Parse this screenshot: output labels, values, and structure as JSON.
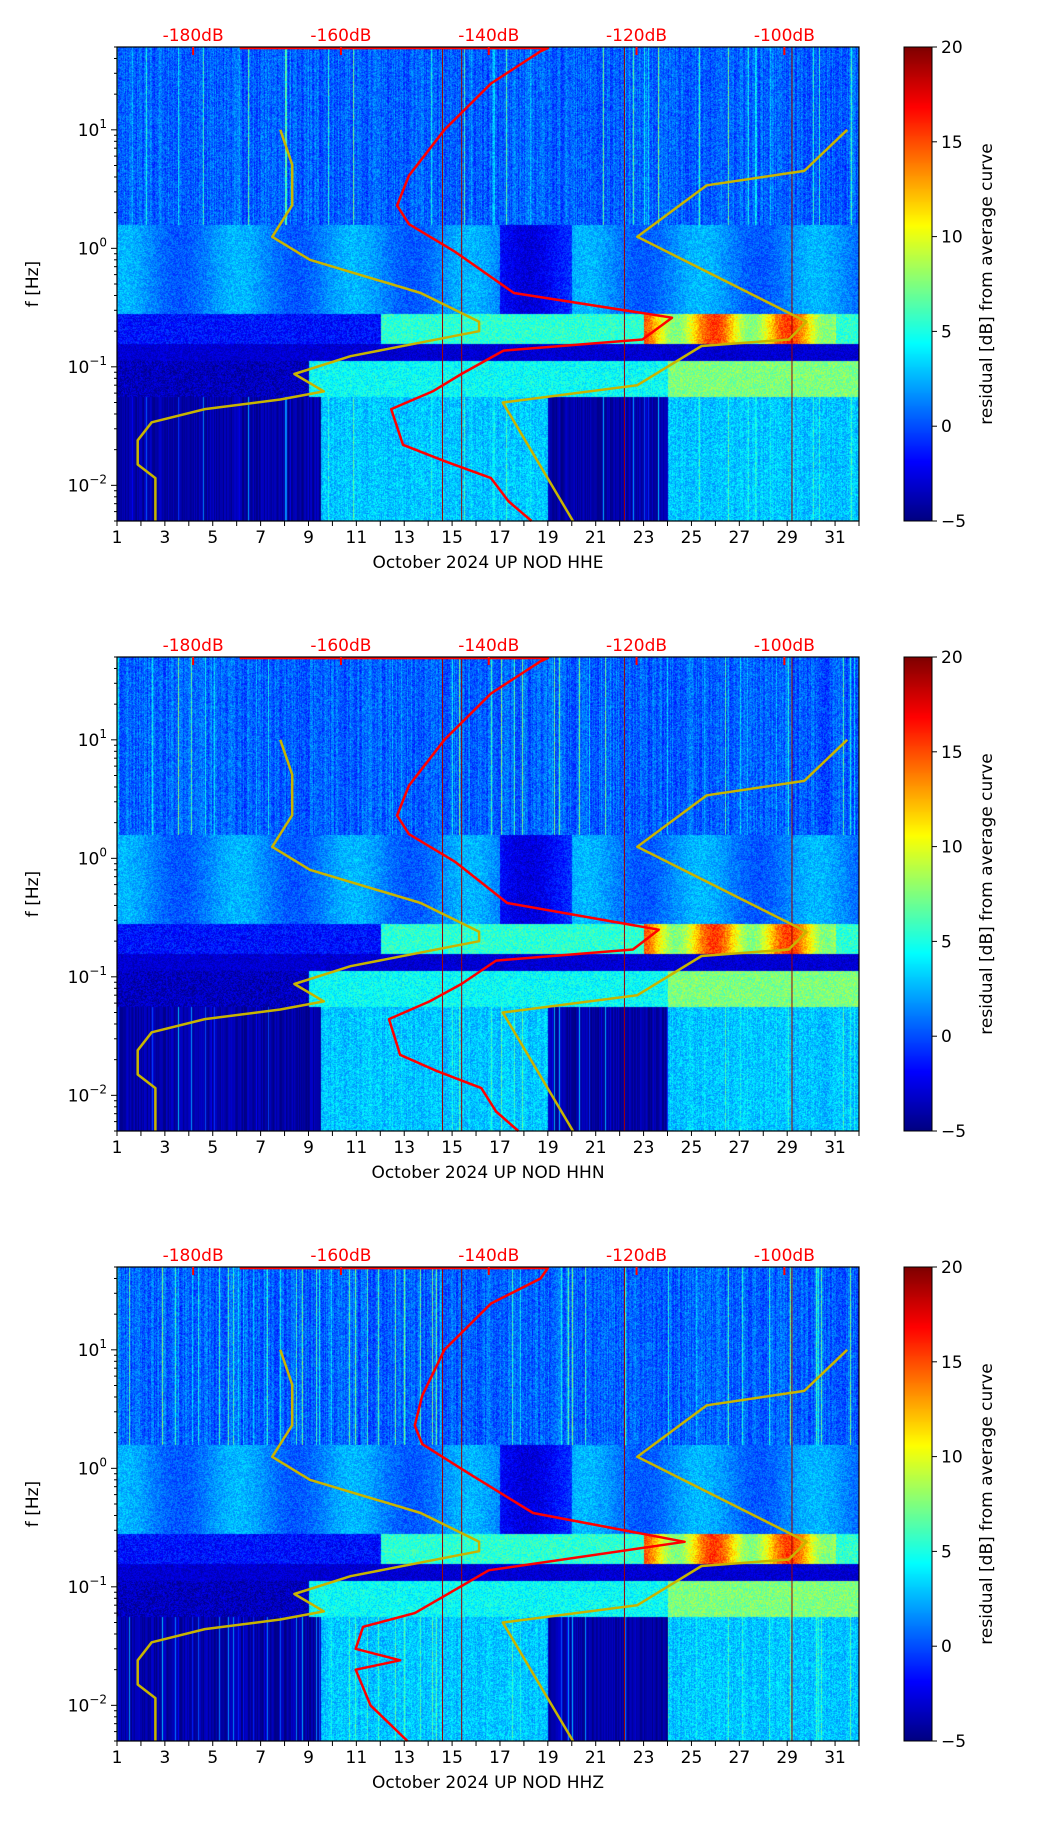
{
  "chart_data": [
    {
      "type": "heatmap",
      "title": "",
      "xlabel": "October 2024 UP NOD  HHE",
      "ylabel": "f [Hz]",
      "channel": "HHE",
      "xlim": [
        1,
        32
      ],
      "ylim": [
        0.005,
        50
      ],
      "yscale": "log",
      "xticks": [
        "1",
        "3",
        "5",
        "7",
        "9",
        "11",
        "13",
        "15",
        "17",
        "19",
        "21",
        "23",
        "25",
        "27",
        "29",
        "31"
      ],
      "top_axis": {
        "labels": [
          "-180dB",
          "-160dB",
          "-140dB",
          "-120dB",
          "-100dB"
        ],
        "values": [
          -180,
          -160,
          -140,
          -120,
          -100
        ],
        "range": [
          -190.3,
          -89.9
        ],
        "color": "#ff0000"
      },
      "colorbar": {
        "label": "residual [dB] from average curve",
        "range": [
          -5,
          20
        ],
        "ticks": [
          "−5",
          "0",
          "5",
          "10",
          "15",
          "20"
        ]
      },
      "psd_curve": {
        "color": "#ff0000",
        "points": [
          [
            -173.7,
            49
          ],
          [
            -132,
            49
          ],
          [
            -133,
            46
          ],
          [
            -139.7,
            24.6
          ],
          [
            -146,
            10
          ],
          [
            -150.8,
            4.1
          ],
          [
            -152.4,
            2.3
          ],
          [
            -150.8,
            1.6
          ],
          [
            -144.5,
            0.93
          ],
          [
            -136.6,
            0.42
          ],
          [
            -115.2,
            0.26
          ],
          [
            -119.2,
            0.17
          ],
          [
            -138,
            0.137
          ],
          [
            -143.7,
            0.087
          ],
          [
            -147.6,
            0.062
          ],
          [
            -153.2,
            0.044
          ],
          [
            -151.6,
            0.022
          ],
          [
            -146,
            0.016
          ],
          [
            -139.7,
            0.0115
          ],
          [
            -137.3,
            0.0073
          ],
          [
            -134.2,
            0.005
          ]
        ]
      },
      "nlnm": {
        "color": "#c8b400",
        "points": [
          [
            -168.2,
            10
          ],
          [
            -166.6,
            5.09
          ],
          [
            -166.6,
            2.31
          ],
          [
            -169.3,
            1.25
          ],
          [
            -164.2,
            0.8
          ],
          [
            -149.2,
            0.42
          ],
          [
            -141.3,
            0.24
          ],
          [
            -141.3,
            0.2
          ],
          [
            -158.7,
            0.123
          ],
          [
            -166.3,
            0.087
          ],
          [
            -162.3,
            0.062
          ],
          [
            -168.2,
            0.053
          ],
          [
            -178.4,
            0.044
          ],
          [
            -185.6,
            0.034
          ],
          [
            -187.5,
            0.024
          ],
          [
            -187.5,
            0.015
          ],
          [
            -185.1,
            0.0115
          ],
          [
            -185.1,
            0.005
          ]
        ]
      },
      "nhnm": {
        "color": "#c8b400",
        "points": [
          [
            -91.5,
            10
          ],
          [
            -97.3,
            4.5
          ],
          [
            -110.5,
            3.4
          ],
          [
            -119.9,
            1.25
          ],
          [
            -97,
            0.24
          ],
          [
            -99.4,
            0.17
          ],
          [
            -111.2,
            0.15
          ],
          [
            -119.9,
            0.07
          ],
          [
            -138.1,
            0.05
          ],
          [
            -128.6,
            0.005
          ]
        ]
      },
      "gap_lines_days": [
        14.6,
        15.4,
        22.2,
        29.2
      ]
    },
    {
      "type": "heatmap",
      "title": "",
      "xlabel": "October 2024 UP NOD  HHN",
      "ylabel": "f [Hz]",
      "channel": "HHN",
      "xlim": [
        1,
        32
      ],
      "ylim": [
        0.005,
        50
      ],
      "yscale": "log",
      "xticks": [
        "1",
        "3",
        "5",
        "7",
        "9",
        "11",
        "13",
        "15",
        "17",
        "19",
        "21",
        "23",
        "25",
        "27",
        "29",
        "31"
      ],
      "top_axis": {
        "labels": [
          "-180dB",
          "-160dB",
          "-140dB",
          "-120dB",
          "-100dB"
        ],
        "values": [
          -180,
          -160,
          -140,
          -120,
          -100
        ],
        "range": [
          -190.3,
          -89.9
        ],
        "color": "#ff0000"
      },
      "colorbar": {
        "label": "residual [dB] from average curve",
        "range": [
          -5,
          20
        ],
        "ticks": [
          "−5",
          "0",
          "5",
          "10",
          "15",
          "20"
        ]
      },
      "psd_curve": {
        "color": "#ff0000",
        "points": [
          [
            -173.7,
            49
          ],
          [
            -132,
            49
          ],
          [
            -133,
            46
          ],
          [
            -139.7,
            24.6
          ],
          [
            -146,
            10
          ],
          [
            -150.8,
            4.1
          ],
          [
            -152.4,
            2.3
          ],
          [
            -150.8,
            1.6
          ],
          [
            -144.5,
            0.93
          ],
          [
            -137.5,
            0.42
          ],
          [
            -117,
            0.25
          ],
          [
            -120.5,
            0.17
          ],
          [
            -139,
            0.137
          ],
          [
            -143.7,
            0.087
          ],
          [
            -148,
            0.062
          ],
          [
            -153.5,
            0.044
          ],
          [
            -152,
            0.022
          ],
          [
            -147,
            0.016
          ],
          [
            -141,
            0.0115
          ],
          [
            -139,
            0.0073
          ],
          [
            -136,
            0.005
          ]
        ]
      },
      "nlnm": {
        "color": "#c8b400",
        "points": [
          [
            -168.2,
            10
          ],
          [
            -166.6,
            5.09
          ],
          [
            -166.6,
            2.31
          ],
          [
            -169.3,
            1.25
          ],
          [
            -164.2,
            0.8
          ],
          [
            -149.2,
            0.42
          ],
          [
            -141.3,
            0.24
          ],
          [
            -141.3,
            0.2
          ],
          [
            -158.7,
            0.123
          ],
          [
            -166.3,
            0.087
          ],
          [
            -162.3,
            0.062
          ],
          [
            -168.2,
            0.053
          ],
          [
            -178.4,
            0.044
          ],
          [
            -185.6,
            0.034
          ],
          [
            -187.5,
            0.024
          ],
          [
            -187.5,
            0.015
          ],
          [
            -185.1,
            0.0115
          ],
          [
            -185.1,
            0.005
          ]
        ]
      },
      "nhnm": {
        "color": "#c8b400",
        "points": [
          [
            -91.5,
            10
          ],
          [
            -97.3,
            4.5
          ],
          [
            -110.5,
            3.4
          ],
          [
            -119.9,
            1.25
          ],
          [
            -97,
            0.24
          ],
          [
            -99.4,
            0.17
          ],
          [
            -111.2,
            0.15
          ],
          [
            -119.9,
            0.07
          ],
          [
            -138.1,
            0.05
          ],
          [
            -128.6,
            0.005
          ]
        ]
      },
      "gap_lines_days": [
        14.6,
        15.4,
        22.2,
        29.2
      ]
    },
    {
      "type": "heatmap",
      "title": "",
      "xlabel": "October 2024 UP NOD  HHZ",
      "ylabel": "f [Hz]",
      "channel": "HHZ",
      "xlim": [
        1,
        32
      ],
      "ylim": [
        0.005,
        50
      ],
      "yscale": "log",
      "xticks": [
        "1",
        "3",
        "5",
        "7",
        "9",
        "11",
        "13",
        "15",
        "17",
        "19",
        "21",
        "23",
        "25",
        "27",
        "29",
        "31"
      ],
      "top_axis": {
        "labels": [
          "-180dB",
          "-160dB",
          "-140dB",
          "-120dB",
          "-100dB"
        ],
        "values": [
          -180,
          -160,
          -140,
          -120,
          -100
        ],
        "range": [
          -190.3,
          -89.9
        ],
        "color": "#ff0000"
      },
      "colorbar": {
        "label": "residual [dB] from average curve",
        "range": [
          -5,
          20
        ],
        "ticks": [
          "−5",
          "0",
          "5",
          "10",
          "15",
          "20"
        ]
      },
      "psd_curve": {
        "color": "#ff0000",
        "points": [
          [
            -173.7,
            49
          ],
          [
            -132,
            49
          ],
          [
            -133,
            40
          ],
          [
            -139.7,
            24.6
          ],
          [
            -146,
            10
          ],
          [
            -149,
            4.1
          ],
          [
            -150,
            2.3
          ],
          [
            -149,
            1.6
          ],
          [
            -143,
            0.93
          ],
          [
            -134,
            0.42
          ],
          [
            -113.5,
            0.24
          ],
          [
            -140,
            0.138
          ],
          [
            -150,
            0.06
          ],
          [
            -157,
            0.046
          ],
          [
            -158,
            0.03
          ],
          [
            -152,
            0.024
          ],
          [
            -158,
            0.02
          ],
          [
            -156,
            0.01
          ],
          [
            -151,
            0.005
          ]
        ]
      },
      "nlnm": {
        "color": "#c8b400",
        "points": [
          [
            -168.2,
            10
          ],
          [
            -166.6,
            5.09
          ],
          [
            -166.6,
            2.31
          ],
          [
            -169.3,
            1.25
          ],
          [
            -164.2,
            0.8
          ],
          [
            -149.2,
            0.42
          ],
          [
            -141.3,
            0.24
          ],
          [
            -141.3,
            0.2
          ],
          [
            -158.7,
            0.123
          ],
          [
            -166.3,
            0.087
          ],
          [
            -162.3,
            0.062
          ],
          [
            -168.2,
            0.053
          ],
          [
            -178.4,
            0.044
          ],
          [
            -185.6,
            0.034
          ],
          [
            -187.5,
            0.024
          ],
          [
            -187.5,
            0.015
          ],
          [
            -185.1,
            0.0115
          ],
          [
            -185.1,
            0.005
          ]
        ]
      },
      "nhnm": {
        "color": "#c8b400",
        "points": [
          [
            -91.5,
            10
          ],
          [
            -97.3,
            4.5
          ],
          [
            -110.5,
            3.4
          ],
          [
            -119.9,
            1.25
          ],
          [
            -97,
            0.24
          ],
          [
            -99.4,
            0.17
          ],
          [
            -111.2,
            0.15
          ],
          [
            -119.9,
            0.07
          ],
          [
            -138.1,
            0.05
          ],
          [
            -128.6,
            0.005
          ]
        ]
      },
      "gap_lines_days": [
        14.6,
        15.4,
        22.2,
        29.2
      ]
    }
  ]
}
